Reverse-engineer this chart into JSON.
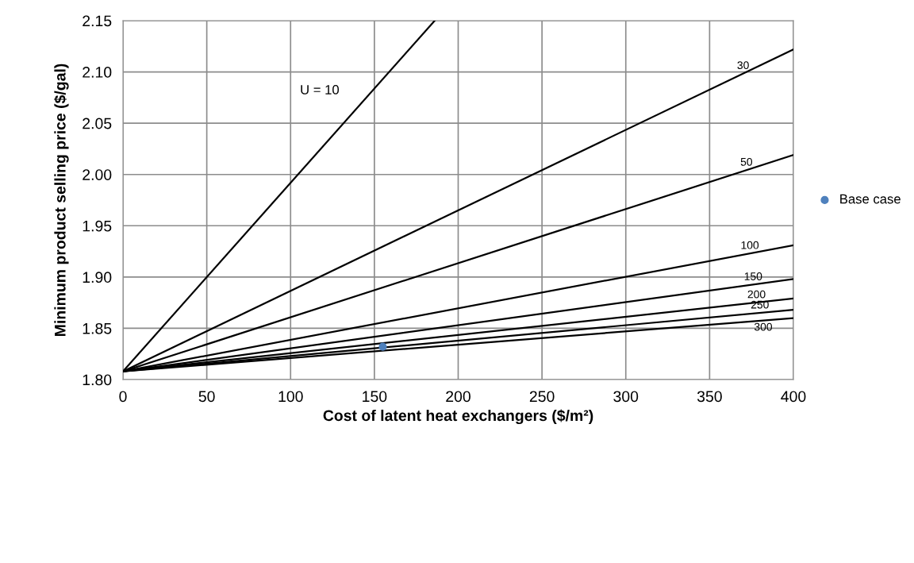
{
  "chart_data": {
    "type": "line",
    "xlabel": "Cost of latent heat exchangers ($/m²)",
    "ylabel": "Minimum product selling price ($/gal)",
    "xlim": [
      0,
      400
    ],
    "xticks": [
      0,
      50,
      100,
      150,
      200,
      250,
      300,
      350,
      400
    ],
    "ylim": [
      1.8,
      2.15
    ],
    "yticks": [
      {
        "value": 1.8,
        "label": "1.80"
      },
      {
        "value": 1.85,
        "label": "1.85"
      },
      {
        "value": 1.9,
        "label": "1.90"
      },
      {
        "value": 1.95,
        "label": "1.95"
      },
      {
        "value": 2.0,
        "label": "2.00"
      },
      {
        "value": 2.05,
        "label": "2.05"
      },
      {
        "value": 2.1,
        "label": "2.10"
      },
      {
        "value": 2.15,
        "label": "2.15"
      }
    ],
    "grid": true,
    "legend": "right",
    "line_style": "solid",
    "marker": "none",
    "series": [
      {
        "name": "U = 10",
        "color": "#000000",
        "x": [
          0,
          186
        ],
        "values": [
          1.808,
          2.15
        ]
      },
      {
        "name": "30",
        "color": "#000000",
        "x": [
          0,
          400
        ],
        "values": [
          1.808,
          2.122
        ]
      },
      {
        "name": "50",
        "color": "#000000",
        "x": [
          0,
          400
        ],
        "values": [
          1.808,
          2.019
        ]
      },
      {
        "name": "100",
        "color": "#000000",
        "x": [
          0,
          400
        ],
        "values": [
          1.808,
          1.931
        ]
      },
      {
        "name": "150",
        "color": "#000000",
        "x": [
          0,
          400
        ],
        "values": [
          1.808,
          1.898
        ]
      },
      {
        "name": "200",
        "color": "#000000",
        "x": [
          0,
          400
        ],
        "values": [
          1.808,
          1.879
        ]
      },
      {
        "name": "250",
        "color": "#000000",
        "x": [
          0,
          400
        ],
        "values": [
          1.808,
          1.868
        ]
      },
      {
        "name": "300",
        "color": "#000000",
        "x": [
          0,
          400
        ],
        "values": [
          1.808,
          1.86
        ]
      },
      {
        "type": "scatter",
        "name": "Base case",
        "color": "#4f81bd",
        "x": [
          155
        ],
        "values": [
          1.832
        ],
        "marker": "circle"
      }
    ]
  }
}
